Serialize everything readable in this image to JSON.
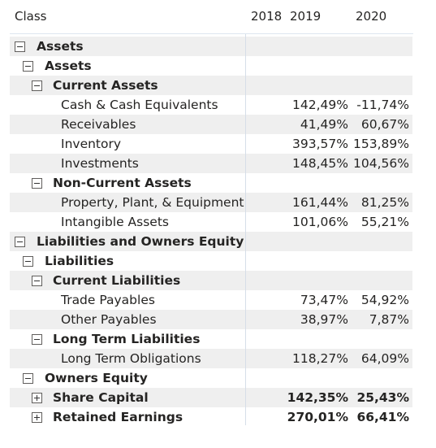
{
  "header": {
    "class_label": "Class",
    "columns": [
      "2018",
      "2019",
      "2020"
    ]
  },
  "rows": [
    {
      "level": 0,
      "toggle": "minus",
      "label": "Assets",
      "bold": true,
      "v2019": "",
      "v2020": ""
    },
    {
      "level": 1,
      "toggle": "minus",
      "label": "Assets",
      "bold": true,
      "v2019": "",
      "v2020": ""
    },
    {
      "level": 2,
      "toggle": "minus",
      "label": "Current Assets",
      "bold": true,
      "v2019": "",
      "v2020": ""
    },
    {
      "level": 3,
      "toggle": "",
      "label": "Cash & Cash Equivalents",
      "bold": false,
      "v2019": "142,49%",
      "v2020": "-11,74%"
    },
    {
      "level": 3,
      "toggle": "",
      "label": "Receivables",
      "bold": false,
      "v2019": "41,49%",
      "v2020": "60,67%"
    },
    {
      "level": 3,
      "toggle": "",
      "label": "Inventory",
      "bold": false,
      "v2019": "393,57%",
      "v2020": "153,89%"
    },
    {
      "level": 3,
      "toggle": "",
      "label": "Investments",
      "bold": false,
      "v2019": "148,45%",
      "v2020": "104,56%"
    },
    {
      "level": 2,
      "toggle": "minus",
      "label": "Non-Current Assets",
      "bold": true,
      "v2019": "",
      "v2020": ""
    },
    {
      "level": 3,
      "toggle": "",
      "label": "Property, Plant, & Equipment",
      "bold": false,
      "v2019": "161,44%",
      "v2020": "81,25%"
    },
    {
      "level": 3,
      "toggle": "",
      "label": "Intangible Assets",
      "bold": false,
      "v2019": "101,06%",
      "v2020": "55,21%"
    },
    {
      "level": 0,
      "toggle": "minus",
      "label": "Liabilities and Owners Equity",
      "bold": true,
      "v2019": "",
      "v2020": ""
    },
    {
      "level": 1,
      "toggle": "minus",
      "label": "Liabilities",
      "bold": true,
      "v2019": "",
      "v2020": ""
    },
    {
      "level": 2,
      "toggle": "minus",
      "label": "Current Liabilities",
      "bold": true,
      "v2019": "",
      "v2020": ""
    },
    {
      "level": 3,
      "toggle": "",
      "label": "Trade Payables",
      "bold": false,
      "v2019": "73,47%",
      "v2020": "54,92%"
    },
    {
      "level": 3,
      "toggle": "",
      "label": "Other Payables",
      "bold": false,
      "v2019": "38,97%",
      "v2020": "7,87%"
    },
    {
      "level": 2,
      "toggle": "minus",
      "label": "Long Term Liabilities",
      "bold": true,
      "v2019": "",
      "v2020": ""
    },
    {
      "level": 3,
      "toggle": "",
      "label": "Long Term Obligations",
      "bold": false,
      "v2019": "118,27%",
      "v2020": "64,09%"
    },
    {
      "level": 1,
      "toggle": "minus",
      "label": "Owners Equity",
      "bold": true,
      "v2019": "",
      "v2020": ""
    },
    {
      "level": 2,
      "toggle": "plus",
      "label": "Share Capital",
      "bold": true,
      "v2019": "142,35%",
      "v2020": "25,43%"
    },
    {
      "level": 2,
      "toggle": "plus",
      "label": "Retained Earnings",
      "bold": true,
      "v2019": "270,01%",
      "v2020": "66,41%"
    }
  ],
  "colors": {
    "row_shade": "#efefef",
    "text": "#252423",
    "divider": "#d6dee8"
  }
}
